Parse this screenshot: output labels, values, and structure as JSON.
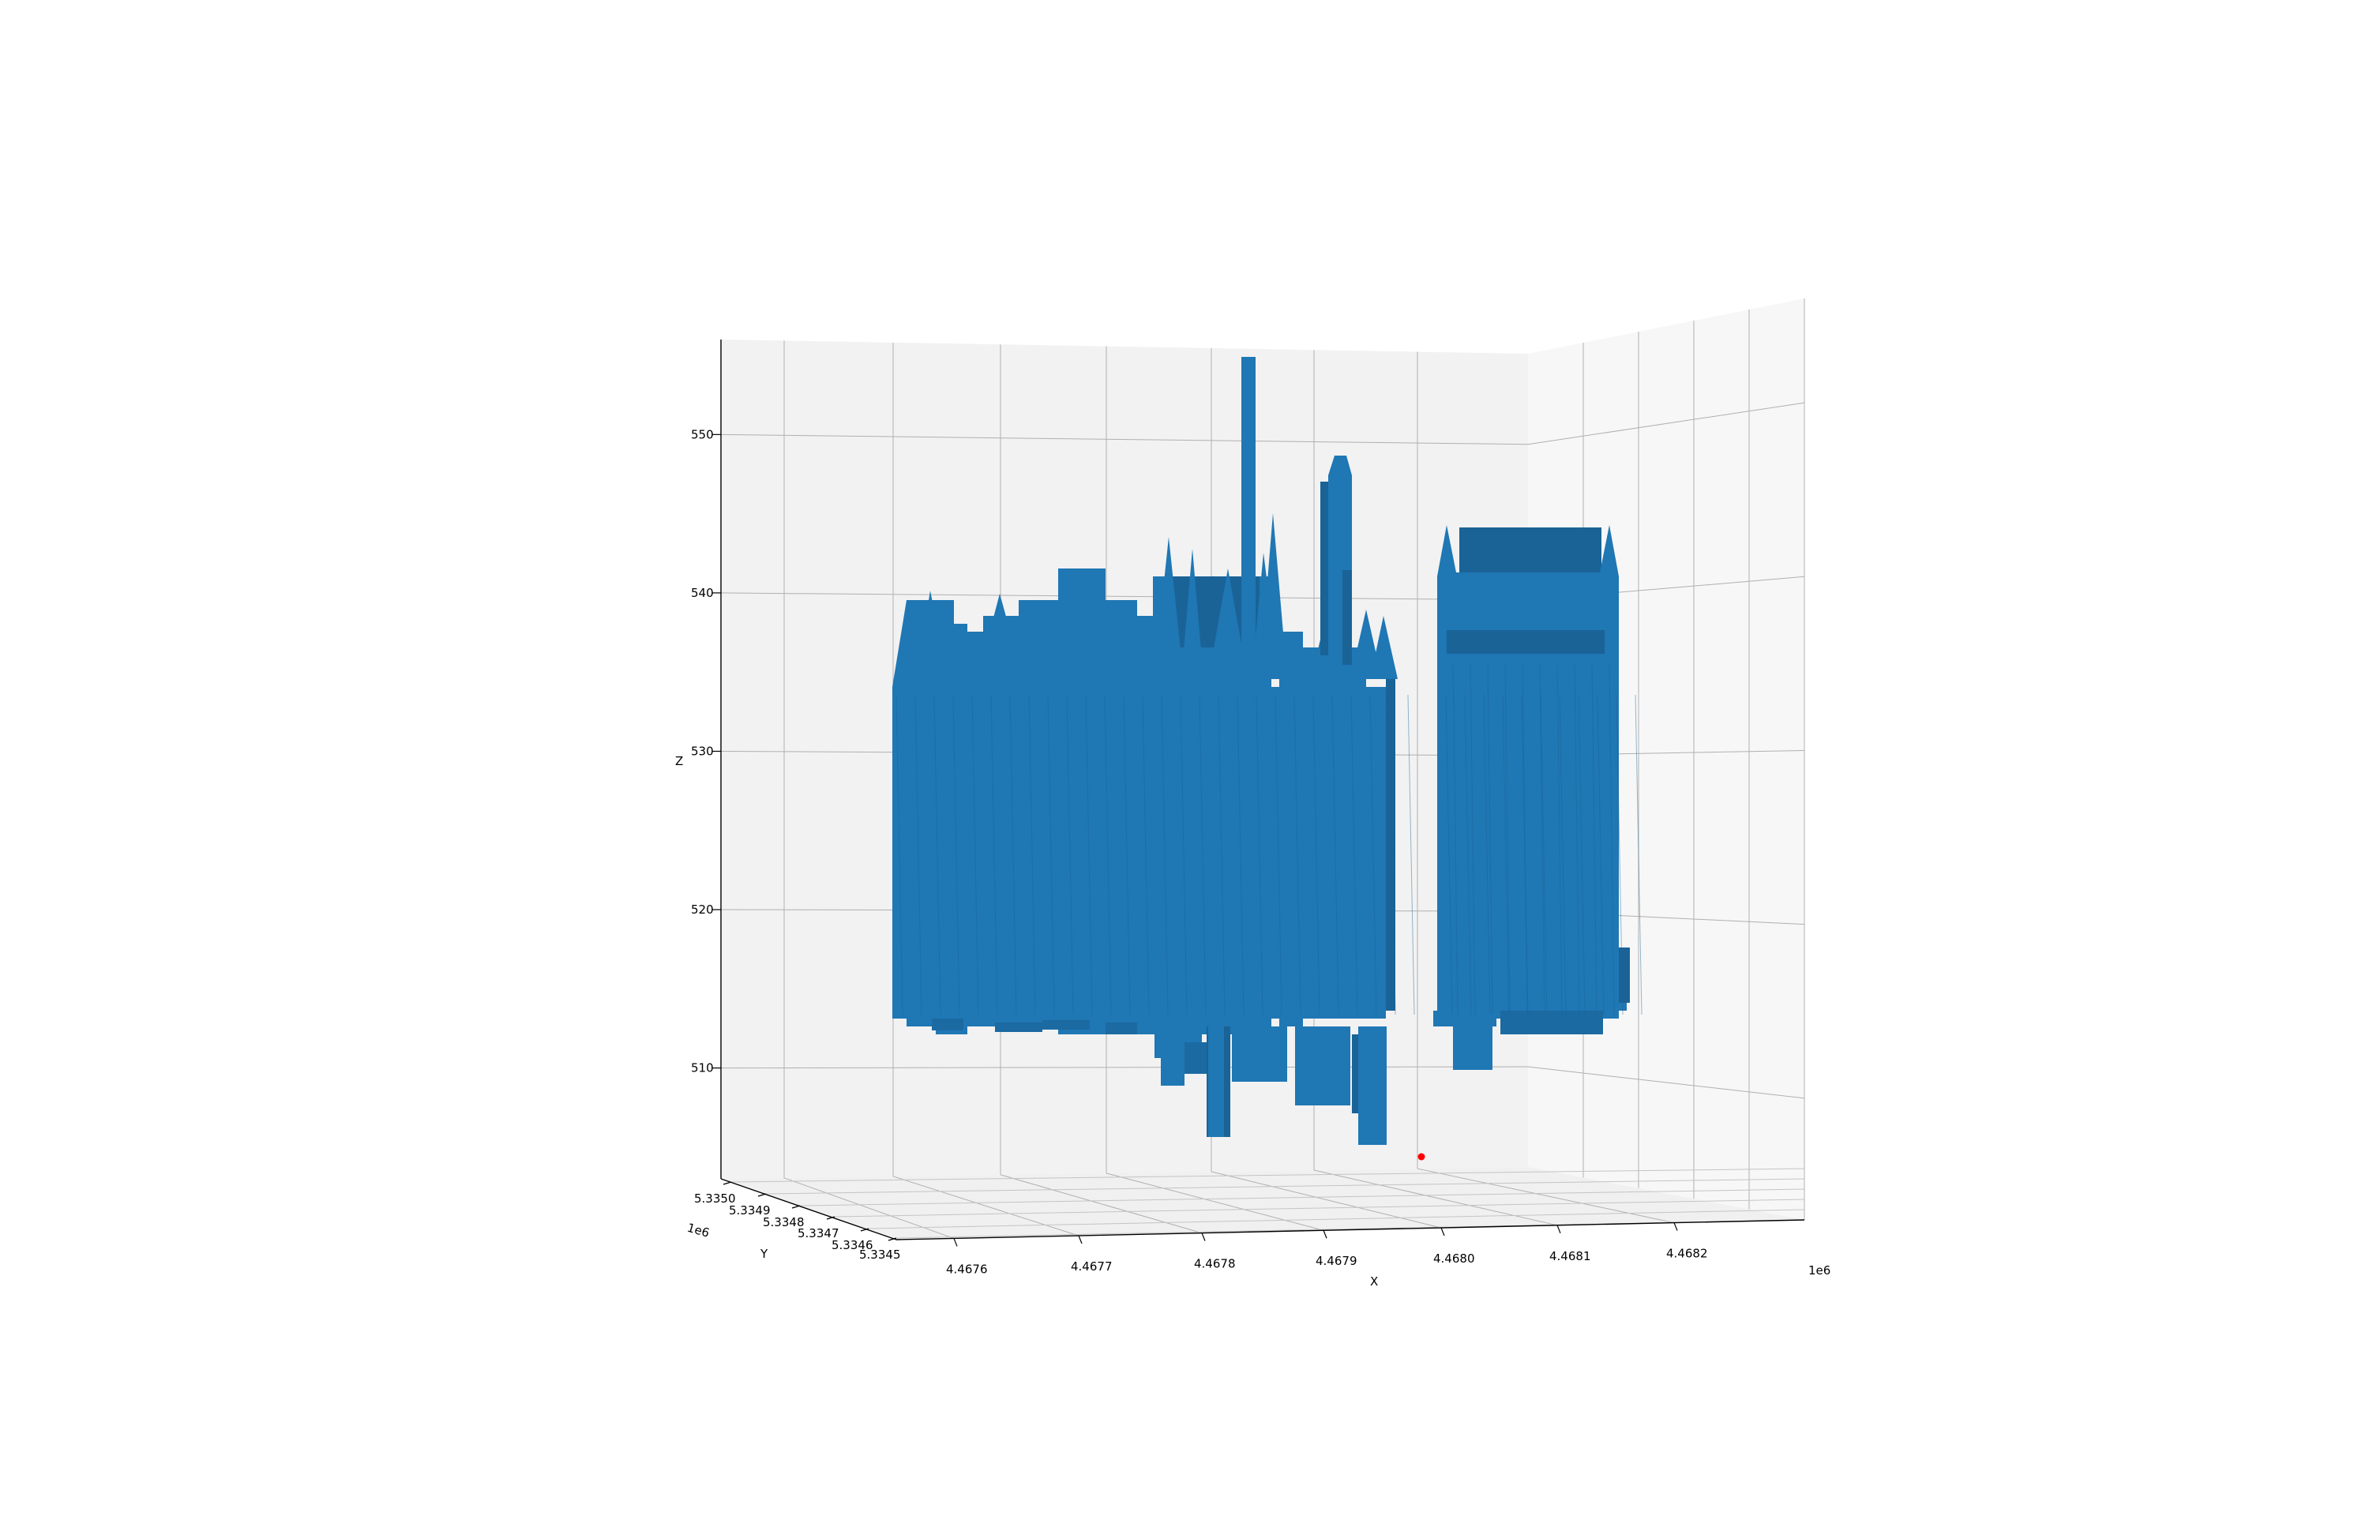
{
  "chart_data": {
    "type": "3d-surface",
    "title": "",
    "xlabel": "X",
    "ylabel": "Y",
    "zlabel": "Z",
    "x_offset_label": "1e6",
    "y_offset_label": "1e6",
    "x_ticks": [
      "4.4676",
      "4.4677",
      "4.4678",
      "4.4679",
      "4.4680",
      "4.4681",
      "4.4682"
    ],
    "y_ticks": [
      "5.3350",
      "5.3349",
      "5.3348",
      "5.3347",
      "5.3346",
      "5.3345"
    ],
    "z_ticks": [
      "550",
      "540",
      "530",
      "520",
      "510"
    ],
    "zlim": [
      503,
      556
    ],
    "grid": true,
    "surface_color": "#1f77b4",
    "surface_shade_color": "#1a6397",
    "point": {
      "x": 4468002,
      "y": 5334500,
      "z": 504.5,
      "color": "#ff0000"
    }
  }
}
